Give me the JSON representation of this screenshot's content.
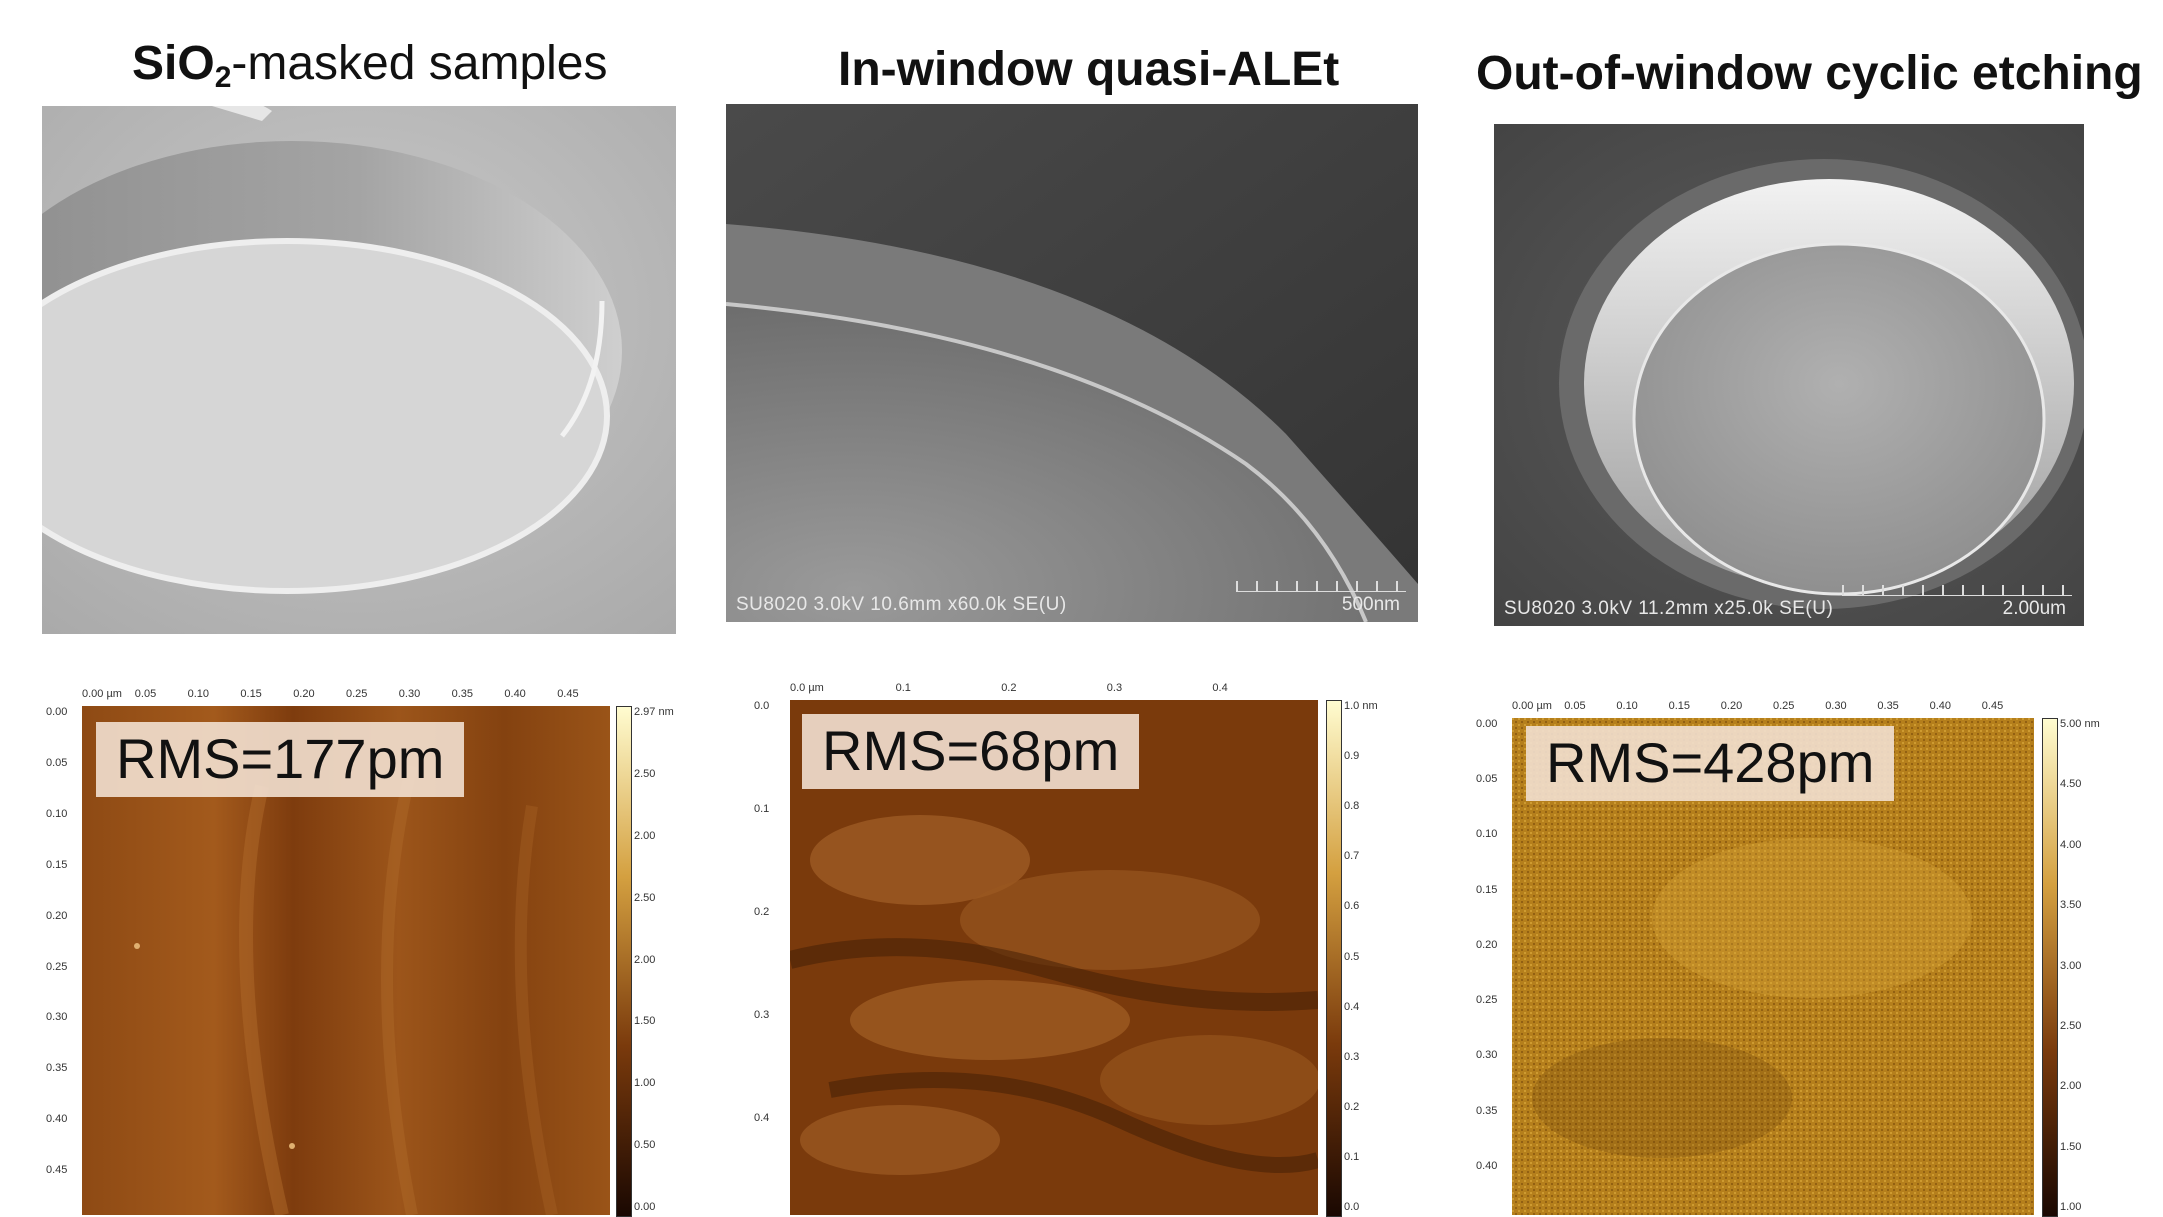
{
  "panels": [
    {
      "title_main": "SiO",
      "title_sub": "2",
      "title_rest": "-masked samples",
      "sem_info": "",
      "sem_scale": "",
      "rms": "RMS=177pm",
      "afm_colors": {
        "base": "#8a4712",
        "light": "#b06a2a",
        "dark": "#5a2a08"
      },
      "x_ticks": [
        "0.00 µm",
        "0.05",
        "0.10",
        "0.15",
        "0.20",
        "0.25",
        "0.30",
        "0.35",
        "0.40",
        "0.45"
      ],
      "y_ticks": [
        "0.00",
        "0.05",
        "0.10",
        "0.15",
        "0.20",
        "0.25",
        "0.30",
        "0.35",
        "0.40",
        "0.45"
      ],
      "cbar_ticks": [
        "2.97 nm",
        "2.50",
        "2.00",
        "2.50",
        "2.00",
        "1.50",
        "1.00",
        "0.50",
        "0.00"
      ]
    },
    {
      "title": "In-window quasi-ALEt",
      "sem_info": "SU8020 3.0kV 10.6mm x60.0k SE(U)",
      "sem_scale": "500nm",
      "rms": "RMS=68pm",
      "afm_colors": {
        "base": "#7a3a0c",
        "light": "#a25f25",
        "dark": "#3e1c04"
      },
      "x_ticks": [
        "0.0 µm",
        "0.1",
        "0.2",
        "0.3",
        "0.4"
      ],
      "y_ticks": [
        "0.0",
        "0.1",
        "0.2",
        "0.3",
        "0.4"
      ],
      "cbar_ticks": [
        "1.0 nm",
        "0.9",
        "0.8",
        "0.7",
        "0.6",
        "0.5",
        "0.4",
        "0.3",
        "0.2",
        "0.1",
        "0.0"
      ]
    },
    {
      "title": "Out-of-window cyclic etching",
      "sem_info": "SU8020 3.0kV 11.2mm x25.0k SE(U)",
      "sem_scale": "2.00um",
      "rms": "RMS=428pm",
      "afm_colors": {
        "base": "#b07a1a",
        "light": "#d6a53a",
        "dark": "#6a3f08"
      },
      "x_ticks": [
        "0.00 µm",
        "0.05",
        "0.10",
        "0.15",
        "0.20",
        "0.25",
        "0.30",
        "0.35",
        "0.40",
        "0.45"
      ],
      "y_ticks": [
        "0.00",
        "0.05",
        "0.10",
        "0.15",
        "0.20",
        "0.25",
        "0.30",
        "0.35",
        "0.40"
      ],
      "cbar_ticks": [
        "5.00 nm",
        "4.50",
        "4.00",
        "3.50",
        "3.00",
        "2.50",
        "2.00",
        "1.50",
        "1.00"
      ]
    }
  ]
}
